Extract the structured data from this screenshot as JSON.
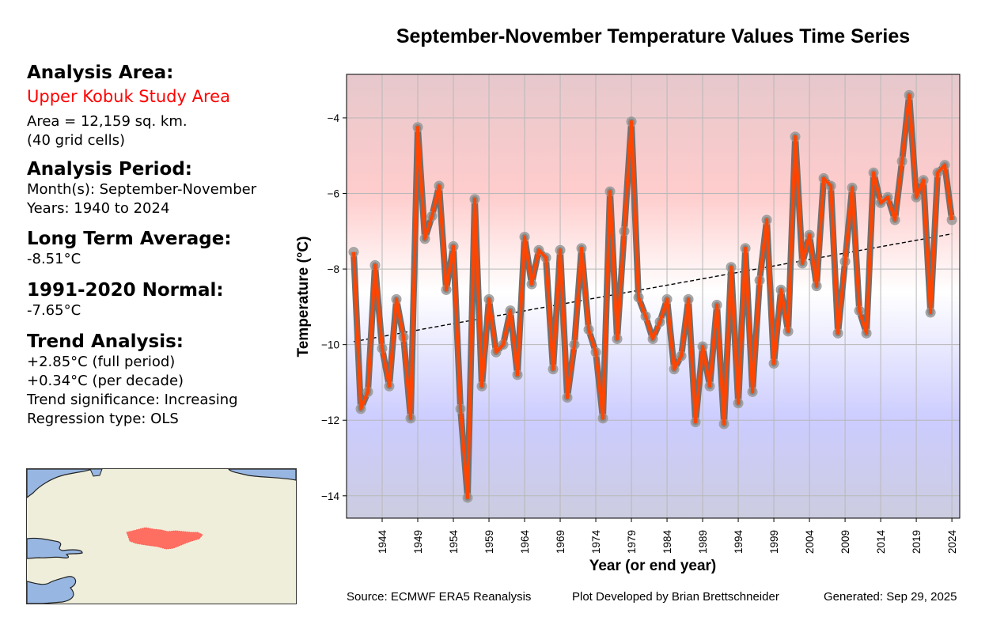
{
  "panel": {
    "area_heading": "Analysis Area:",
    "area_name": "Upper Kobuk Study Area",
    "area_size": "Area = 12,159 sq. km.",
    "grid_cells": "(40 grid cells)",
    "period_heading": "Analysis Period:",
    "months": "Month(s): September-November",
    "years": "Years: 1940 to 2024",
    "lta_heading": "Long Term Average:",
    "lta_value": "-8.51°C",
    "normal_heading": "1991-2020 Normal:",
    "normal_value": "-7.65°C",
    "trend_heading": "Trend Analysis:",
    "trend_full": "+2.85°C (full period)",
    "trend_decade": "+0.34°C (per decade)",
    "trend_significance": "Trend significance: Increasing",
    "regression_type": "Regression type: OLS"
  },
  "colors": {
    "line": "#ff4500",
    "marker": "#808080",
    "area_name": "#ff0000",
    "study_area": "#ff6f61",
    "water": "#97b6e1",
    "land": "#efeedb"
  },
  "footer": {
    "source": "Source: ECMWF ERA5 Reanalysis",
    "author": "Plot Developed by Brian Brettschneider",
    "generated": "Generated: Sep 29, 2025"
  },
  "chart_data": {
    "type": "line",
    "title": "September-November Temperature Values Time Series",
    "xlabel": "Year (or end year)",
    "ylabel": "Temperature (°C)",
    "xlim": [
      1939,
      2025.1
    ],
    "ylim": [
      -14.59,
      -2.85
    ],
    "xticks": [
      1944,
      1949,
      1954,
      1959,
      1964,
      1969,
      1974,
      1979,
      1984,
      1989,
      1994,
      1999,
      2004,
      2009,
      2014,
      2019,
      2024
    ],
    "yticks": [
      -14,
      -12,
      -10,
      -8,
      -6,
      -4
    ],
    "ytick_labels": [
      "−14",
      "−12",
      "−10",
      "−8",
      "−6",
      "−4"
    ],
    "grid": true,
    "x": [
      1940,
      1941,
      1942,
      1943,
      1944,
      1945,
      1946,
      1947,
      1948,
      1949,
      1950,
      1951,
      1952,
      1953,
      1954,
      1955,
      1956,
      1957,
      1958,
      1959,
      1960,
      1961,
      1962,
      1963,
      1964,
      1965,
      1966,
      1967,
      1968,
      1969,
      1970,
      1971,
      1972,
      1973,
      1974,
      1975,
      1976,
      1977,
      1978,
      1979,
      1980,
      1981,
      1982,
      1983,
      1984,
      1985,
      1986,
      1987,
      1988,
      1989,
      1990,
      1991,
      1992,
      1993,
      1994,
      1995,
      1996,
      1997,
      1998,
      1999,
      2000,
      2001,
      2002,
      2003,
      2004,
      2005,
      2006,
      2007,
      2008,
      2009,
      2010,
      2011,
      2012,
      2013,
      2014,
      2015,
      2016,
      2017,
      2018,
      2019,
      2020,
      2021,
      2022,
      2023,
      2024
    ],
    "series": [
      {
        "name": "Temperature",
        "values": [
          -7.55,
          -11.7,
          -11.25,
          -7.9,
          -10.1,
          -11.1,
          -8.8,
          -9.8,
          -11.95,
          -4.25,
          -7.2,
          -6.6,
          -5.8,
          -8.55,
          -7.4,
          -11.7,
          -14.05,
          -6.15,
          -11.1,
          -8.8,
          -10.2,
          -10.0,
          -9.1,
          -10.8,
          -7.15,
          -8.4,
          -7.5,
          -7.7,
          -10.65,
          -7.5,
          -11.4,
          -10.0,
          -7.45,
          -9.6,
          -10.2,
          -11.95,
          -5.95,
          -9.85,
          -7.0,
          -4.1,
          -8.75,
          -9.25,
          -9.85,
          -9.4,
          -8.8,
          -10.65,
          -10.3,
          -8.8,
          -12.05,
          -10.05,
          -11.1,
          -8.95,
          -12.1,
          -7.95,
          -11.55,
          -7.45,
          -11.25,
          -8.3,
          -6.7,
          -10.5,
          -8.55,
          -9.65,
          -4.5,
          -7.85,
          -7.1,
          -8.45,
          -5.6,
          -5.8,
          -9.7,
          -7.8,
          -5.85,
          -9.1,
          -9.7,
          -5.45,
          -6.25,
          -6.1,
          -6.7,
          -5.15,
          -3.4,
          -6.1,
          -5.65,
          -9.15,
          -5.45,
          -5.25,
          -6.7
        ]
      },
      {
        "name": "Trend (OLS)",
        "x": [
          1940,
          2024
        ],
        "values": [
          -9.92,
          -7.07
        ]
      }
    ],
    "background_gradient": [
      {
        "value": -2.85,
        "color": "#e6c8cc"
      },
      {
        "value": -6.0,
        "color": "#ffcccc"
      },
      {
        "value": -8.6,
        "color": "#ffffff"
      },
      {
        "value": -12.0,
        "color": "#ccccff"
      },
      {
        "value": -14.59,
        "color": "#cccce0"
      }
    ]
  }
}
